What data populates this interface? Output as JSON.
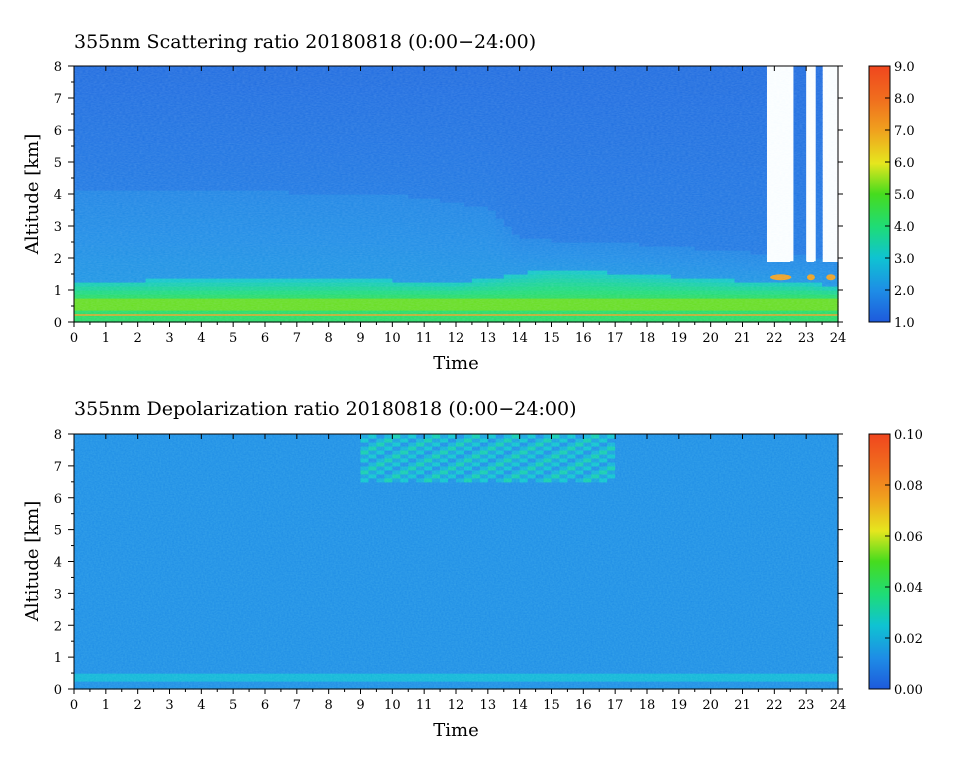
{
  "chart_data": [
    {
      "type": "heatmap",
      "title": "355nm Scattering ratio   20180818 (0:00−24:00)",
      "xlabel": "Time",
      "ylabel": "Altitude [km]",
      "xlim": [
        0,
        24
      ],
      "ylim": [
        0,
        8
      ],
      "x_ticks": [
        "0",
        "1",
        "2",
        "3",
        "4",
        "5",
        "6",
        "7",
        "8",
        "9",
        "10",
        "11",
        "12",
        "13",
        "14",
        "15",
        "16",
        "17",
        "18",
        "19",
        "20",
        "21",
        "22",
        "23",
        "24"
      ],
      "y_ticks": [
        "0",
        "1",
        "2",
        "3",
        "4",
        "5",
        "6",
        "7",
        "8"
      ],
      "colorbar": {
        "range": [
          1.0,
          9.0
        ],
        "ticks": [
          "1.0",
          "2.0",
          "3.0",
          "4.0",
          "5.0",
          "6.0",
          "7.0",
          "8.0",
          "9.0"
        ]
      },
      "features": {
        "background_value": 1.3,
        "lower_layer_top_km": [
          [
            0,
            1.3
          ],
          [
            9,
            1.35
          ],
          [
            12,
            1.25
          ],
          [
            15,
            1.65
          ],
          [
            17,
            1.55
          ],
          [
            21,
            1.3
          ],
          [
            23,
            1.25
          ],
          [
            24,
            1.1
          ]
        ],
        "mid_layer_top_km": [
          [
            0,
            4.1
          ],
          [
            5,
            4.1
          ],
          [
            10,
            4.0
          ],
          [
            13,
            3.6
          ],
          [
            14,
            2.6
          ],
          [
            17,
            2.5
          ],
          [
            21,
            2.2
          ],
          [
            24,
            2.0
          ]
        ],
        "lower_layer_value": 4.3,
        "surface_layer_value": 5.2,
        "cloud_intervals_h": [
          [
            21.8,
            22.6
          ],
          [
            23.0,
            23.3
          ],
          [
            23.6,
            23.95
          ]
        ],
        "cloud_base_km": 1.4,
        "cloud_peak_value": 7.0
      }
    },
    {
      "type": "heatmap",
      "title": "355nm Depolarization ratio   20180818 (0:00−24:00)",
      "xlabel": "Time",
      "ylabel": "Altitude [km]",
      "xlim": [
        0,
        24
      ],
      "ylim": [
        0,
        8
      ],
      "x_ticks": [
        "0",
        "1",
        "2",
        "3",
        "4",
        "5",
        "6",
        "7",
        "8",
        "9",
        "10",
        "11",
        "12",
        "13",
        "14",
        "15",
        "16",
        "17",
        "18",
        "19",
        "20",
        "21",
        "22",
        "23",
        "24"
      ],
      "y_ticks": [
        "0",
        "1",
        "2",
        "3",
        "4",
        "5",
        "6",
        "7",
        "8"
      ],
      "colorbar": {
        "range": [
          0.0,
          0.1
        ],
        "ticks": [
          "0.00",
          "0.02",
          "0.04",
          "0.06",
          "0.08",
          "0.10"
        ]
      },
      "features": {
        "background_value": 0.012,
        "near_surface_band_km": [
          0.2,
          0.5
        ],
        "near_surface_value": 0.022,
        "noisy_upper_region": {
          "time_h": [
            9,
            17
          ],
          "alt_km": [
            6.5,
            8
          ],
          "max_value": 0.03
        }
      }
    }
  ]
}
